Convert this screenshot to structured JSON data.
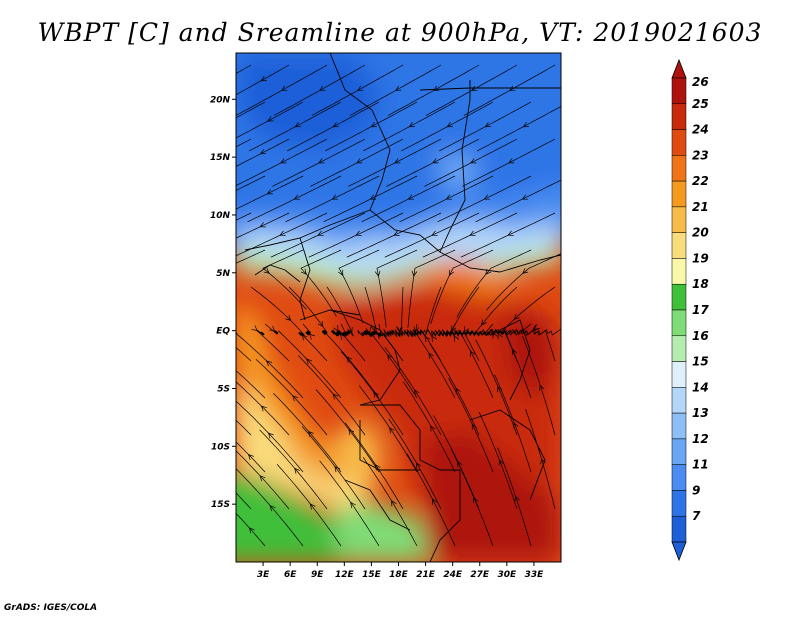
{
  "title": "WBPT [C] and Sreamline at 900hPa, VT: 2019021603",
  "credit": "GrADS: IGES/COLA",
  "map": {
    "lon_range": [
      0,
      36
    ],
    "lat_range": [
      -20,
      24
    ],
    "lat_ticks": [
      {
        "label": "20N",
        "value": 20
      },
      {
        "label": "15N",
        "value": 15
      },
      {
        "label": "10N",
        "value": 10
      },
      {
        "label": "5N",
        "value": 5
      },
      {
        "label": "EQ",
        "value": 0
      },
      {
        "label": "5S",
        "value": -5
      },
      {
        "label": "10S",
        "value": -10
      },
      {
        "label": "15S",
        "value": -15
      }
    ],
    "lon_ticks": [
      {
        "label": "3E",
        "value": 3
      },
      {
        "label": "6E",
        "value": 6
      },
      {
        "label": "9E",
        "value": 9
      },
      {
        "label": "12E",
        "value": 12
      },
      {
        "label": "15E",
        "value": 15
      },
      {
        "label": "18E",
        "value": 18
      },
      {
        "label": "21E",
        "value": 21
      },
      {
        "label": "24E",
        "value": 24
      },
      {
        "label": "27E",
        "value": 27
      },
      {
        "label": "30E",
        "value": 30
      },
      {
        "label": "33E",
        "value": 33
      }
    ]
  },
  "colorbar": {
    "labels": [
      "7",
      "9",
      "11",
      "12",
      "13",
      "14",
      "15",
      "16",
      "17",
      "18",
      "19",
      "20",
      "21",
      "22",
      "23",
      "24",
      "25",
      "26"
    ],
    "colors": [
      "#1e5fd8",
      "#2e74e6",
      "#4a8cf0",
      "#6aa6f4",
      "#8dbef6",
      "#b4d6f8",
      "#dff0fb",
      "#b6ecb0",
      "#7fdc76",
      "#3fbf3a",
      "#f9f7a8",
      "#f9dc7c",
      "#f7bb4a",
      "#f59a20",
      "#ef7418",
      "#e04b12",
      "#c92a0c",
      "#ad130c"
    ],
    "under_color": "#1e5fd8",
    "over_color": "#ad130c"
  }
}
